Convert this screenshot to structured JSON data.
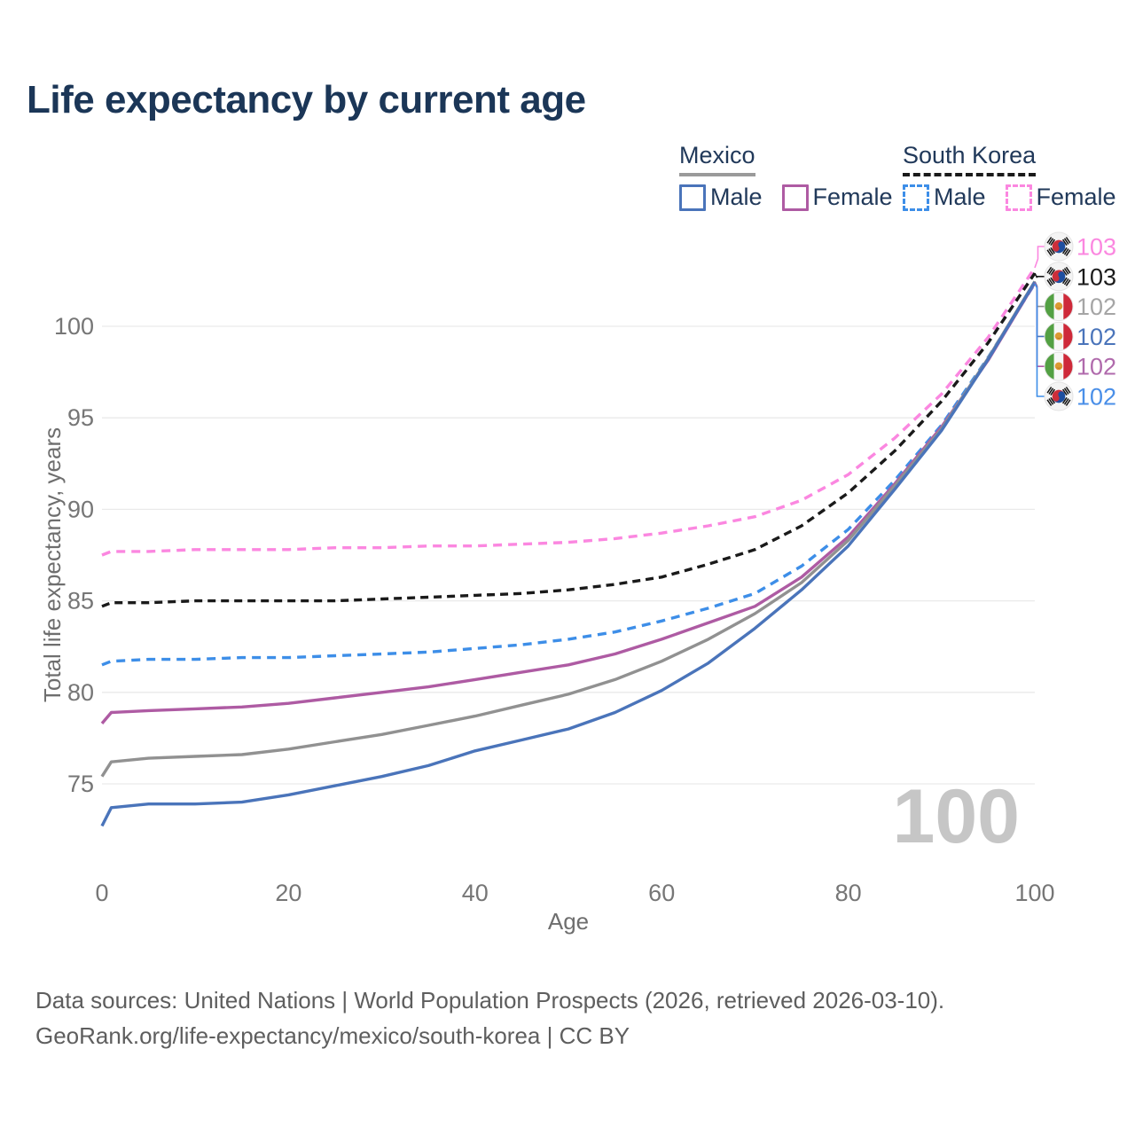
{
  "title": "Life expectancy by current age",
  "age_counter": "100",
  "legend": {
    "groups": [
      {
        "label": "Mexico",
        "underline_style": "solid",
        "underline_color": "#9a9a9a",
        "items": [
          {
            "label": "Male",
            "color": "#4a74ba",
            "dashed": false
          },
          {
            "label": "Female",
            "color": "#ae5ba3",
            "dashed": false
          }
        ]
      },
      {
        "label": "South Korea",
        "underline_style": "dashed",
        "underline_color": "#1a1a1a",
        "items": [
          {
            "label": "Male",
            "color": "#3d8ee8",
            "dashed": true
          },
          {
            "label": "Female",
            "color": "#fb87e0",
            "dashed": true
          }
        ]
      }
    ]
  },
  "chart_data": {
    "type": "line",
    "title": "Life expectancy by current age",
    "xlabel": "Age",
    "ylabel": "Total life expectancy, years",
    "x_ticks": [
      0,
      20,
      40,
      60,
      80,
      100
    ],
    "y_ticks": [
      75,
      80,
      85,
      90,
      95,
      100
    ],
    "xlim": [
      0,
      100
    ],
    "ylim": [
      70,
      105
    ],
    "grid": "horizontal-only",
    "legend_position": "top-right",
    "x": [
      0,
      1,
      5,
      10,
      15,
      20,
      25,
      30,
      35,
      40,
      45,
      50,
      55,
      60,
      65,
      70,
      75,
      80,
      85,
      90,
      95,
      100
    ],
    "series": [
      {
        "key": "sk_female",
        "name": "South Korea Female",
        "color": "#fb87e0",
        "dash": "10 7",
        "values": [
          87.5,
          87.7,
          87.7,
          87.8,
          87.8,
          87.8,
          87.9,
          87.9,
          88.0,
          88.0,
          88.1,
          88.2,
          88.4,
          88.7,
          89.1,
          89.6,
          90.5,
          91.9,
          93.9,
          96.3,
          99.4,
          103.2
        ]
      },
      {
        "key": "sk_total",
        "name": "South Korea (both sexes)",
        "color": "#1a1a1a",
        "dash": "9 6",
        "values": [
          84.7,
          84.9,
          84.9,
          85.0,
          85.0,
          85.0,
          85.0,
          85.1,
          85.2,
          85.3,
          85.4,
          85.6,
          85.9,
          86.3,
          87.0,
          87.8,
          89.1,
          90.9,
          93.2,
          95.9,
          99.1,
          102.9
        ]
      },
      {
        "key": "sk_male",
        "name": "South Korea Male",
        "color": "#3d8ee8",
        "dash": "10 7",
        "values": [
          81.5,
          81.7,
          81.8,
          81.8,
          81.9,
          81.9,
          82.0,
          82.1,
          82.2,
          82.4,
          82.6,
          82.9,
          83.3,
          83.9,
          84.6,
          85.4,
          86.9,
          88.9,
          91.6,
          94.6,
          98.3,
          102.33
        ]
      },
      {
        "key": "mx_female",
        "name": "Mexico Female",
        "color": "#ae5ba3",
        "dash": null,
        "values": [
          78.3,
          78.9,
          79.0,
          79.1,
          79.2,
          79.4,
          79.7,
          80.0,
          80.3,
          80.7,
          81.1,
          81.5,
          82.1,
          82.9,
          83.8,
          84.7,
          86.3,
          88.5,
          91.4,
          94.5,
          98.15,
          102.38
        ]
      },
      {
        "key": "mx_total",
        "name": "Mexico (both sexes)",
        "color": "#919191",
        "dash": null,
        "values": [
          75.4,
          76.2,
          76.4,
          76.5,
          76.6,
          76.9,
          77.3,
          77.7,
          78.2,
          78.7,
          79.3,
          79.9,
          80.7,
          81.7,
          82.9,
          84.3,
          86.0,
          88.3,
          91.3,
          94.4,
          98.25,
          102.45
        ]
      },
      {
        "key": "mx_male",
        "name": "Mexico Male",
        "color": "#4a74ba",
        "dash": null,
        "values": [
          72.7,
          73.7,
          73.9,
          73.9,
          74.0,
          74.4,
          74.9,
          75.4,
          76.0,
          76.8,
          77.4,
          78.0,
          78.9,
          80.1,
          81.6,
          83.5,
          85.6,
          88.0,
          91.1,
          94.3,
          98.2,
          102.42
        ]
      }
    ]
  },
  "end_labels": [
    {
      "value": "103",
      "flag": "kr",
      "color": "#fb87e0",
      "series_key": "sk_female"
    },
    {
      "value": "103",
      "flag": "kr",
      "color": "#1a1a1a",
      "series_key": "sk_total"
    },
    {
      "value": "102",
      "flag": "mx",
      "color": "#a5a5a5",
      "series_key": "mx_total"
    },
    {
      "value": "102",
      "flag": "mx",
      "color": "#4a74ba",
      "series_key": "mx_male"
    },
    {
      "value": "102",
      "flag": "mx",
      "color": "#b06aac",
      "series_key": "mx_female"
    },
    {
      "value": "102",
      "flag": "kr",
      "color": "#4a8fe8",
      "series_key": "sk_male"
    }
  ],
  "footer": {
    "line1": "Data sources: United Nations | World Population Prospects (2026, retrieved 2026-03-10).",
    "line2": "GeoRank.org/life-expectancy/mexico/south-korea | CC BY"
  }
}
